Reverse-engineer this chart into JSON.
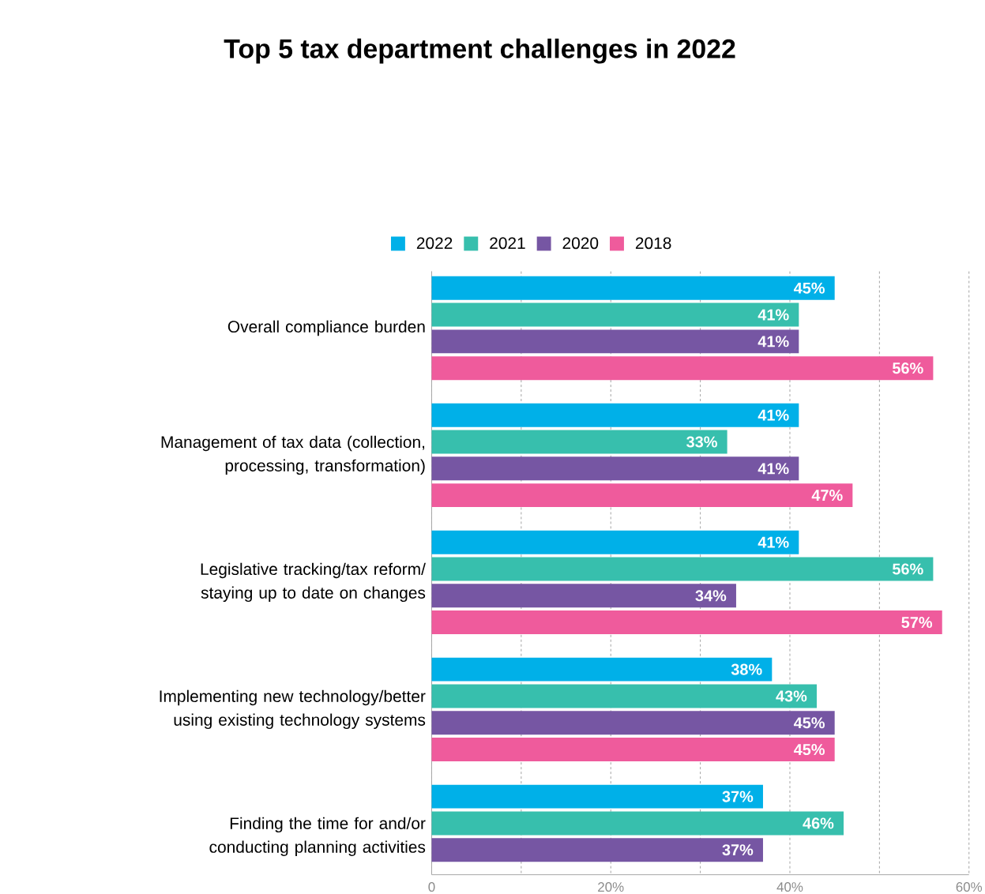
{
  "chart_data": {
    "type": "bar",
    "orientation": "horizontal",
    "title": "Top 5 tax department challenges in 2022",
    "categories": [
      "Overall compliance burden",
      "Management of tax data (collection, processing, transformation)",
      "Legislative tracking/tax reform/ staying up to date on changes",
      "Implementing new technology/better using existing technology systems",
      "Finding the time for and/or conducting planning activities"
    ],
    "series": [
      {
        "name": "2022",
        "color": "#00b0e8",
        "values": [
          45,
          41,
          41,
          38,
          37
        ],
        "value_labels": [
          "45%",
          "41%",
          "41%",
          "38%",
          "37%"
        ]
      },
      {
        "name": "2021",
        "color": "#37bfad",
        "values": [
          41,
          33,
          56,
          43,
          46
        ],
        "value_labels": [
          "41%",
          "33%",
          "56%",
          "43%",
          "46%"
        ]
      },
      {
        "name": "2020",
        "color": "#7656a3",
        "values": [
          41,
          41,
          34,
          45,
          37
        ],
        "value_labels": [
          "41%",
          "41%",
          "34%",
          "45%",
          "37%"
        ]
      },
      {
        "name": "2018",
        "color": "#ef5b9c",
        "values": [
          56,
          47,
          57,
          45,
          null
        ],
        "value_labels": [
          "56%",
          "47%",
          "57%",
          "45%",
          null
        ]
      }
    ],
    "xlim": [
      0,
      60
    ],
    "xticks": [
      0,
      {
        "value": 10,
        "label": null
      },
      {
        "value": 20,
        "label": "20%"
      },
      {
        "value": 30,
        "label": null
      },
      {
        "value": 40,
        "label": "40%"
      },
      {
        "value": 50,
        "label": null
      },
      {
        "value": 60,
        "label": "60%"
      }
    ],
    "grid": "x",
    "legend": "top"
  }
}
